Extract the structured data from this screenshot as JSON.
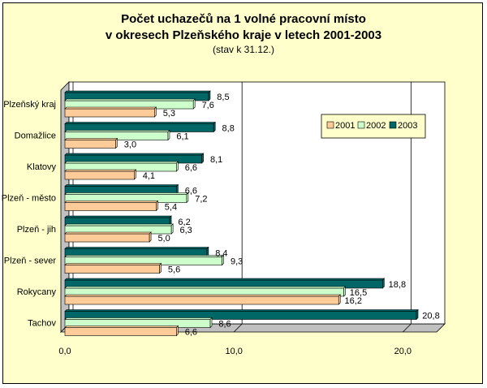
{
  "chart_data": {
    "type": "bar",
    "orientation": "horizontal",
    "title_lines": [
      "Počet  uchazečů na 1 volné pracovní místo",
      "v okresech Plzeňského kraje v letech 2001-2003"
    ],
    "subtitle": "(stav k 31.12.)",
    "categories": [
      "Plzeňský kraj",
      "Domažlice",
      "Klatovy",
      "Plzeň - město",
      "Plzeň - jih",
      "Plzeň - sever",
      "Rokycany",
      "Tachov"
    ],
    "series": [
      {
        "name": "2001",
        "color": "#ffcc99",
        "values": [
          5.3,
          3.0,
          4.1,
          5.4,
          5.0,
          5.6,
          16.2,
          6.6
        ],
        "labels": [
          "5,3",
          "3,0",
          "4,1",
          "5,4",
          "5,0",
          "5,6",
          "16,2",
          "6,6"
        ]
      },
      {
        "name": "2002",
        "color": "#ccffcc",
        "values": [
          7.6,
          6.1,
          6.6,
          7.2,
          6.3,
          9.3,
          16.5,
          8.6
        ],
        "labels": [
          "7,6",
          "6,1",
          "6,6",
          "7,2",
          "6,3",
          "9,3",
          "16,5",
          "8,6"
        ]
      },
      {
        "name": "2003",
        "color": "#006666",
        "values": [
          8.5,
          8.8,
          8.1,
          6.6,
          6.2,
          8.4,
          18.8,
          20.8
        ],
        "labels": [
          "8,5",
          "8,8",
          "8,1",
          "6,6",
          "6,2",
          "8,4",
          "18,8",
          "20,8"
        ]
      }
    ],
    "xlim": [
      0,
      20
    ],
    "ticks": [
      0,
      10,
      20
    ],
    "tick_labels": [
      "0,0",
      "10,0",
      "20,0"
    ],
    "grid": "vertical",
    "legend": "top-right",
    "plot_background": "#ffffff"
  }
}
